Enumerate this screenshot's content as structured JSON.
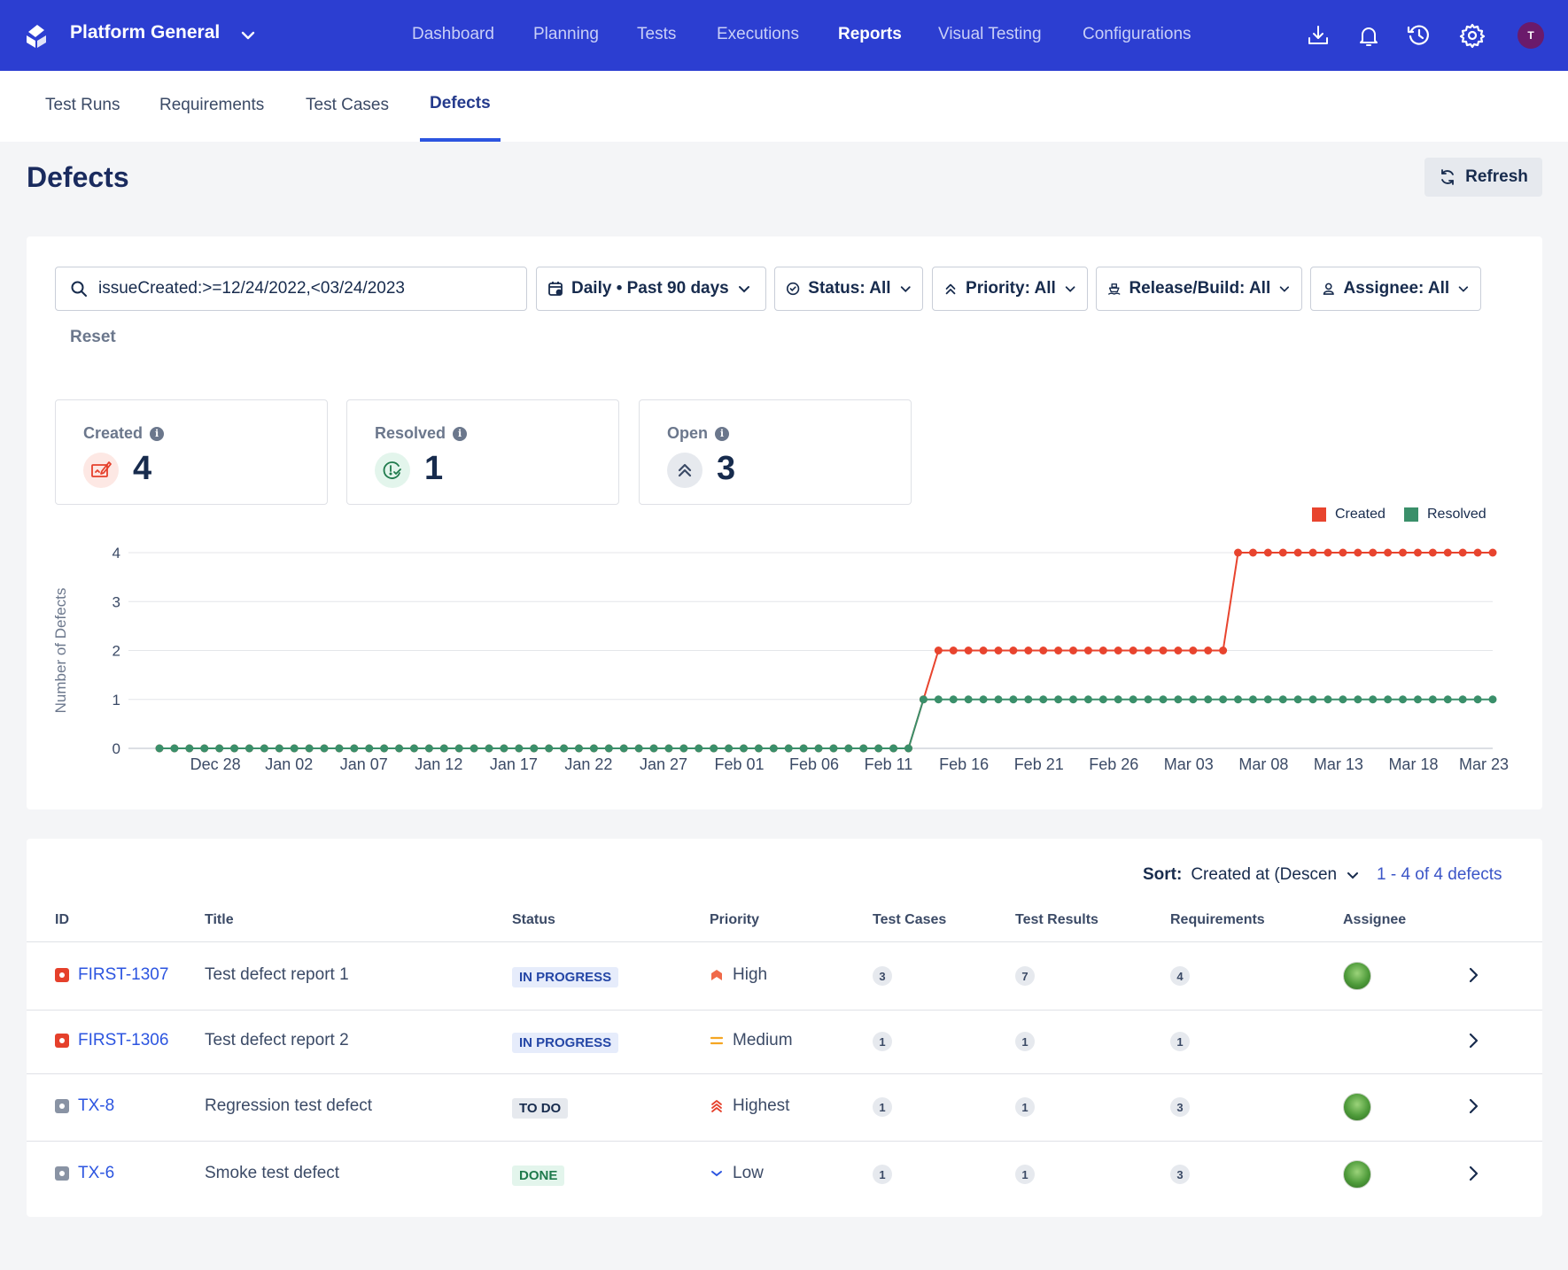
{
  "topbar": {
    "project_name": "Platform General",
    "nav": [
      "Dashboard",
      "Planning",
      "Tests",
      "Executions",
      "Reports",
      "Visual Testing",
      "Configurations"
    ],
    "active_nav": "Reports",
    "user_initial": "T"
  },
  "subnav": {
    "tabs": [
      "Test Runs",
      "Requirements",
      "Test Cases",
      "Defects"
    ],
    "active": "Defects"
  },
  "page": {
    "title": "Defects",
    "refresh_label": "Refresh"
  },
  "filters": {
    "search_value": "issueCreated:>=12/24/2022,<03/24/2023",
    "period": "Daily • Past 90 days",
    "status": "Status: All",
    "priority": "Priority: All",
    "release": "Release/Build: All",
    "assignee": "Assignee: All",
    "reset_label": "Reset"
  },
  "kpis": {
    "created": {
      "label": "Created",
      "value": "4"
    },
    "resolved": {
      "label": "Resolved",
      "value": "1"
    },
    "open": {
      "label": "Open",
      "value": "3"
    }
  },
  "colors": {
    "created": "#e8442e",
    "resolved": "#3a8f6a",
    "accent": "#2c3ed1"
  },
  "chart_data": {
    "type": "line",
    "ylabel": "Number of Defects",
    "ylim": [
      0,
      4
    ],
    "yticks": [
      "0",
      "1",
      "2",
      "3",
      "4"
    ],
    "x_start": "2022-12-24",
    "x_end": "2023-03-23",
    "x_tick_labels": [
      "Dec 28",
      "Jan 02",
      "Jan 07",
      "Jan 12",
      "Jan 17",
      "Jan 22",
      "Jan 27",
      "Feb 01",
      "Feb 06",
      "Feb 11",
      "Feb 16",
      "Feb 21",
      "Feb 26",
      "Mar 03",
      "Mar 08",
      "Mar 13",
      "Mar 18",
      "Mar 23"
    ],
    "series": [
      {
        "name": "Created",
        "steps": [
          {
            "from": "2022-12-24",
            "value": 0
          },
          {
            "from": "2023-02-13",
            "value": 1
          },
          {
            "from": "2023-02-14",
            "value": 2
          },
          {
            "from": "2023-03-06",
            "value": 4
          }
        ]
      },
      {
        "name": "Resolved",
        "steps": [
          {
            "from": "2022-12-24",
            "value": 0
          },
          {
            "from": "2023-02-13",
            "value": 1
          }
        ]
      }
    ]
  },
  "table": {
    "sort_label": "Sort:",
    "sort_value": "Created at (Descen",
    "pager": "1 - 4 of 4 defects",
    "headers": [
      "ID",
      "Title",
      "Status",
      "Priority",
      "Test Cases",
      "Test Results",
      "Requirements",
      "Assignee"
    ],
    "rows": [
      {
        "id": "FIRST-1307",
        "id_color": "#e5402b",
        "title": "Test defect report 1",
        "status": "IN PROGRESS",
        "status_bg": "#e6ecfb",
        "status_fg": "#2446a6",
        "priority": "High",
        "priority_icon": "high-priority-icon",
        "test_cases": "3",
        "test_results": "7",
        "requirements": "4",
        "has_assignee": true
      },
      {
        "id": "FIRST-1306",
        "id_color": "#e5402b",
        "title": "Test defect report 2",
        "status": "IN PROGRESS",
        "status_bg": "#e6ecfb",
        "status_fg": "#2446a6",
        "priority": "Medium",
        "priority_icon": "medium-priority-icon",
        "test_cases": "1",
        "test_results": "1",
        "requirements": "1",
        "has_assignee": false
      },
      {
        "id": "TX-8",
        "id_color": "#8993a4",
        "title": "Regression test defect",
        "status": "TO DO",
        "status_bg": "#e6e9ee",
        "status_fg": "#172b4d",
        "priority": "Highest",
        "priority_icon": "highest-priority-icon",
        "test_cases": "1",
        "test_results": "1",
        "requirements": "3",
        "has_assignee": true
      },
      {
        "id": "TX-6",
        "id_color": "#8993a4",
        "title": "Smoke test defect",
        "status": "DONE",
        "status_bg": "#e3f5ec",
        "status_fg": "#1f7a4c",
        "priority": "Low",
        "priority_icon": "low-priority-icon",
        "test_cases": "1",
        "test_results": "1",
        "requirements": "3",
        "has_assignee": true
      }
    ]
  }
}
